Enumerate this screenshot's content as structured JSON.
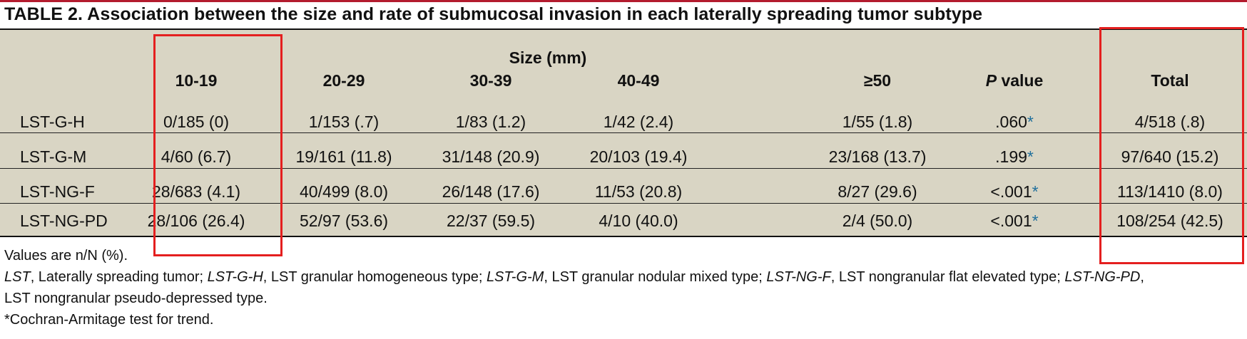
{
  "title": "TABLE 2. Association between the size and rate of submucosal invasion in each laterally spreading tumor subtype",
  "header": {
    "size_label": "Size (mm)",
    "columns": [
      "10-19",
      "20-29",
      "30-39",
      "40-49",
      "≥50"
    ],
    "p_italic": "P",
    "p_rest": " value",
    "total": "Total"
  },
  "rows": [
    {
      "label": "LST-G-H",
      "cells": [
        "0/185 (0)",
        "1/153 (.7)",
        "1/83 (1.2)",
        "1/42 (2.4)",
        "1/55 (1.8)"
      ],
      "p": ".060",
      "star": "*",
      "total": "4/518 (.8)"
    },
    {
      "label": "LST-G-M",
      "cells": [
        "4/60 (6.7)",
        "19/161 (11.8)",
        "31/148 (20.9)",
        "20/103 (19.4)",
        "23/168 (13.7)"
      ],
      "p": ".199",
      "star": "*",
      "total": "97/640 (15.2)"
    },
    {
      "label": "LST-NG-F",
      "cells": [
        "28/683 (4.1)",
        "40/499 (8.0)",
        "26/148 (17.6)",
        "11/53 (20.8)",
        "8/27 (29.6)"
      ],
      "p": "<.001",
      "star": "*",
      "total": "113/1410 (8.0)"
    },
    {
      "label": "LST-NG-PD",
      "cells": [
        "28/106 (26.4)",
        "52/97 (53.6)",
        "22/37 (59.5)",
        "4/10 (40.0)",
        "2/4 (50.0)"
      ],
      "p": "<.001",
      "star": "*",
      "total": "108/254 (42.5)"
    }
  ],
  "footnotes": {
    "values": "Values are n/N (%).",
    "abbrev": [
      {
        "term": "LST",
        "def": ", Laterally spreading tumor; "
      },
      {
        "term": "LST-G-H",
        "def": ", LST granular homogeneous type; "
      },
      {
        "term": "LST-G-M",
        "def": ", LST granular nodular mixed type; "
      },
      {
        "term": "LST-NG-F",
        "def": ", LST nongranular flat elevated type; "
      },
      {
        "term": "LST-NG-PD",
        "def": ","
      }
    ],
    "abbrev_line2": "LST nongranular pseudo-depressed type.",
    "test": "*Cochran-Armitage test for trend."
  },
  "colors": {
    "table_bg": "#d9d5c4",
    "top_rule": "#b31b2e",
    "highlight": "#e41f1f",
    "star": "#1f6f9c"
  }
}
